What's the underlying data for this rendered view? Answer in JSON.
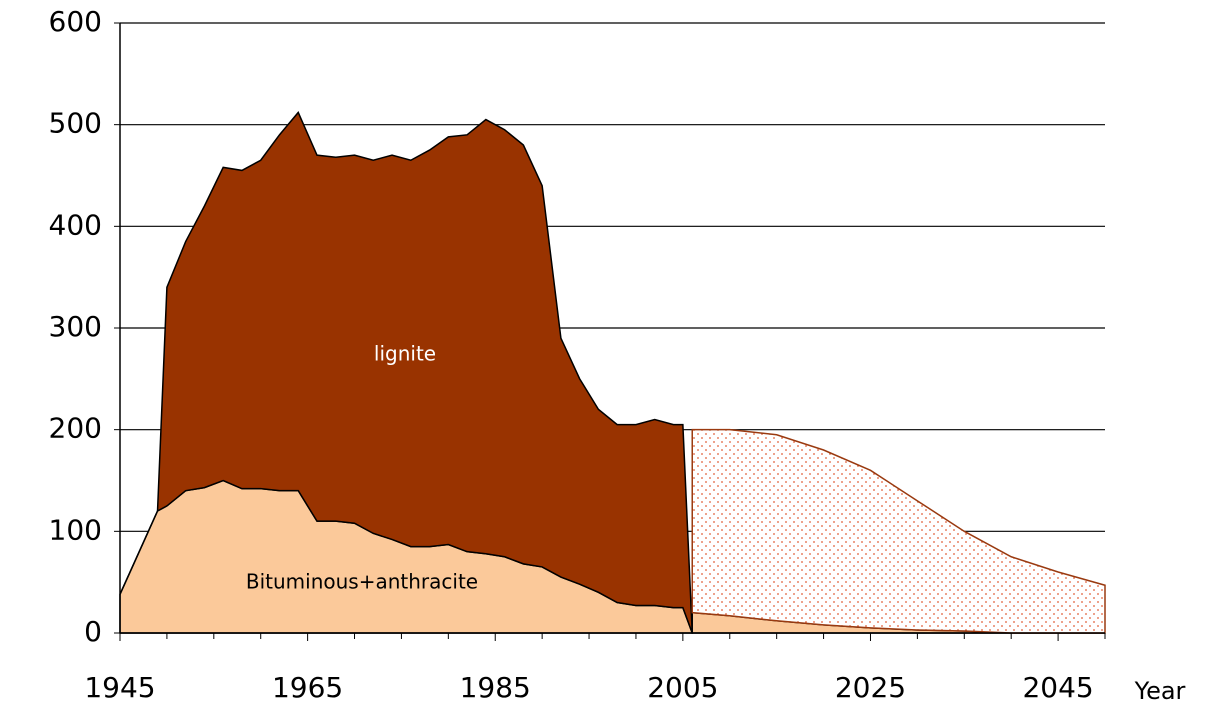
{
  "chart_data": {
    "type": "area",
    "x_label": "Year",
    "xlim": [
      1945,
      2050
    ],
    "xticks": [
      1945,
      1965,
      1985,
      2005,
      2025,
      2045
    ],
    "xminorticks": [
      1950,
      1955,
      1960,
      1970,
      1975,
      1980,
      1990,
      1995,
      2000,
      2010,
      2015,
      2020,
      2030,
      2035,
      2040,
      2050
    ],
    "ylim": [
      0,
      600
    ],
    "yticks": [
      0,
      100,
      200,
      300,
      400,
      500,
      600
    ],
    "grid": true,
    "series": [
      {
        "name": "Bituminous+anthracite",
        "color": "#fbc99a",
        "label_color": "#000",
        "x": [
          1945,
          1949,
          1950,
          1952,
          1954,
          1956,
          1958,
          1960,
          1962,
          1964,
          1966,
          1968,
          1970,
          1972,
          1974,
          1976,
          1978,
          1980,
          1982,
          1984,
          1986,
          1988,
          1990,
          1992,
          1994,
          1996,
          1998,
          2000,
          2002,
          2004,
          2005,
          2006
        ],
        "values": [
          38,
          120,
          125,
          140,
          143,
          150,
          142,
          142,
          140,
          140,
          110,
          110,
          108,
          98,
          92,
          85,
          85,
          87,
          80,
          78,
          75,
          68,
          65,
          55,
          48,
          40,
          30,
          27,
          27,
          25,
          25,
          0
        ]
      },
      {
        "name": "lignite",
        "color": "#993300",
        "label_color": "#fff",
        "x": [
          1945,
          1949,
          1950,
          1952,
          1954,
          1956,
          1958,
          1960,
          1962,
          1964,
          1966,
          1968,
          1970,
          1972,
          1974,
          1976,
          1978,
          1980,
          1982,
          1984,
          1986,
          1988,
          1990,
          1992,
          1994,
          1996,
          1998,
          2000,
          2002,
          2004,
          2005,
          2006
        ],
        "values": [
          0,
          0,
          215,
          245,
          277,
          308,
          313,
          323,
          350,
          372,
          360,
          358,
          362,
          367,
          378,
          380,
          390,
          401,
          410,
          427,
          420,
          412,
          375,
          235,
          202,
          180,
          175,
          178,
          183,
          180,
          180,
          0
        ]
      },
      {
        "color": "#fbc99a",
        "x": [
          2006,
          2010,
          2015,
          2020,
          2025,
          2030,
          2035,
          2040,
          2045,
          2050
        ],
        "values": [
          20,
          17,
          12,
          8,
          5,
          3,
          2,
          0,
          0,
          0
        ]
      },
      {
        "color": "#9a3a10",
        "pattern": "dots",
        "x": [
          2006,
          2010,
          2015,
          2020,
          2025,
          2030,
          2035,
          2040,
          2045,
          2050
        ],
        "values": [
          180,
          183,
          183,
          172,
          155,
          127,
          98,
          75,
          60,
          47
        ]
      }
    ]
  }
}
